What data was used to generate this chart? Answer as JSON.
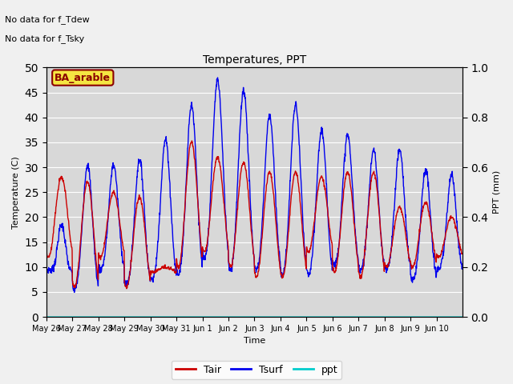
{
  "title": "Temperatures, PPT",
  "xlabel": "Time",
  "ylabel_left": "Temperature (C)",
  "ylabel_right": "PPT (mm)",
  "ylim_left": [
    0,
    50
  ],
  "ylim_right": [
    0.0,
    1.0
  ],
  "annotation1": "No data for f_Tdew",
  "annotation2": "No data for f_Tsky",
  "label_box": "BA_arable",
  "legend_labels": [
    "Tair",
    "Tsurf",
    "ppt"
  ],
  "tair_color": "#cc0000",
  "tsurf_color": "#0000ee",
  "ppt_color": "#00cccc",
  "fig_facecolor": "#f0f0f0",
  "plot_facecolor": "#d8d8d8",
  "xtick_labels": [
    "May 26",
    "May 27",
    "May 28",
    "May 29",
    "May 30",
    "May 31",
    "Jun 1",
    "Jun 2",
    "Jun 3",
    "Jun 4",
    "Jun 5",
    "Jun 6",
    "Jun 7",
    "Jun 8",
    "Jun 9",
    "Jun 10"
  ],
  "yticks_left": [
    0,
    5,
    10,
    15,
    20,
    25,
    30,
    35,
    40,
    45,
    50
  ],
  "yticks_right": [
    0.0,
    0.2,
    0.4,
    0.6,
    0.8,
    1.0
  ],
  "days": 16
}
